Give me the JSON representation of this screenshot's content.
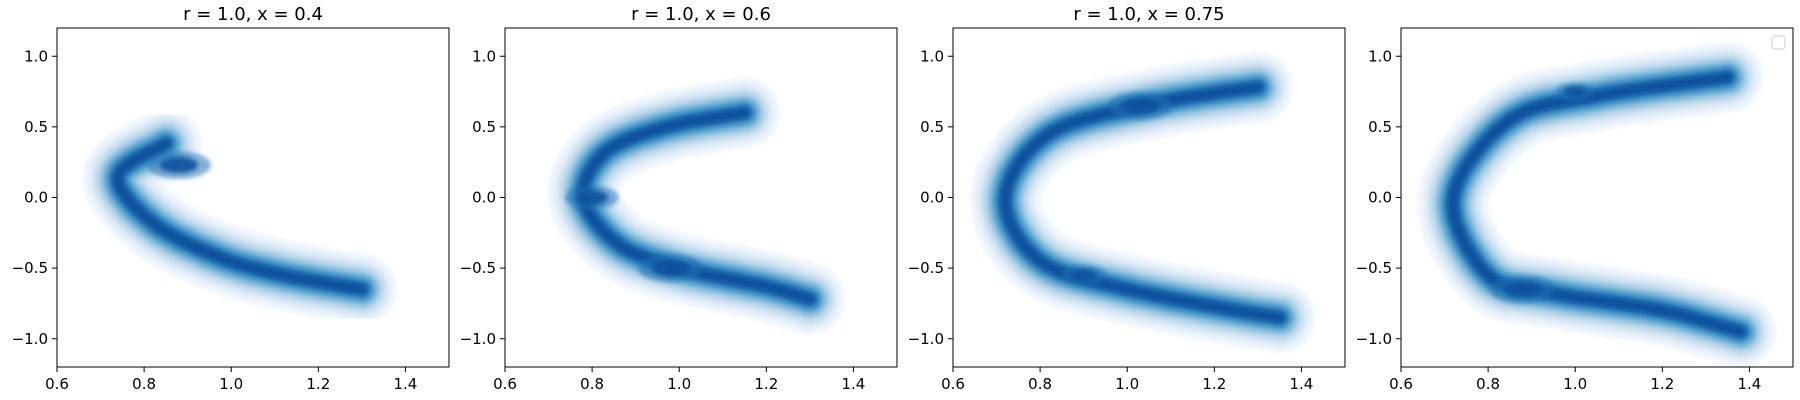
{
  "chart_data": [
    {
      "type": "contour",
      "title": "r = 1.0, x = 0.4",
      "xlabel": "",
      "ylabel": "",
      "xlim": [
        0.6,
        1.5
      ],
      "ylim": [
        -1.2,
        1.2
      ],
      "xticks": [
        {
          "value": 0.6,
          "label": "0.6"
        },
        {
          "value": 0.8,
          "label": "0.8"
        },
        {
          "value": 1.0,
          "label": "1.0"
        },
        {
          "value": 1.2,
          "label": "1.2"
        },
        {
          "value": 1.4,
          "label": "1.4"
        }
      ],
      "yticks": [
        {
          "value": -1.0,
          "label": "−1.0"
        },
        {
          "value": -0.5,
          "label": "−0.5"
        },
        {
          "value": 0.0,
          "label": "0.0"
        },
        {
          "value": 0.5,
          "label": "0.5"
        },
        {
          "value": 1.0,
          "label": "1.0"
        }
      ],
      "colormap": "Blues",
      "density_path": [
        [
          0.85,
          0.38
        ],
        [
          0.74,
          0.15
        ],
        [
          0.82,
          -0.18
        ],
        [
          0.97,
          -0.42
        ],
        [
          1.12,
          -0.55
        ],
        [
          1.3,
          -0.65
        ]
      ],
      "peaks": [
        {
          "x": 0.88,
          "y": 0.23,
          "value": 1.0
        }
      ]
    },
    {
      "type": "contour",
      "title": "r = 1.0, x = 0.6",
      "xlabel": "",
      "ylabel": "",
      "xlim": [
        0.6,
        1.5
      ],
      "ylim": [
        -1.2,
        1.2
      ],
      "xticks": [
        {
          "value": 0.6,
          "label": "0.6"
        },
        {
          "value": 0.8,
          "label": "0.8"
        },
        {
          "value": 1.0,
          "label": "1.0"
        },
        {
          "value": 1.2,
          "label": "1.2"
        },
        {
          "value": 1.4,
          "label": "1.4"
        }
      ],
      "yticks": [
        {
          "value": -1.0,
          "label": "−1.0"
        },
        {
          "value": -0.5,
          "label": "−0.5"
        },
        {
          "value": 0.0,
          "label": "0.0"
        },
        {
          "value": 0.5,
          "label": "0.5"
        },
        {
          "value": 1.0,
          "label": "1.0"
        }
      ],
      "colormap": "Blues",
      "density_path": [
        [
          1.15,
          0.6
        ],
        [
          0.97,
          0.5
        ],
        [
          0.83,
          0.32
        ],
        [
          0.78,
          0.0
        ],
        [
          0.86,
          -0.33
        ],
        [
          1.0,
          -0.5
        ],
        [
          1.2,
          -0.63
        ],
        [
          1.3,
          -0.72
        ]
      ],
      "peaks": [
        {
          "x": 0.98,
          "y": -0.5,
          "value": 1.0
        },
        {
          "x": 0.8,
          "y": 0.0,
          "value": 0.8
        }
      ]
    },
    {
      "type": "contour",
      "title": "r = 1.0, x = 0.75",
      "xlabel": "",
      "ylabel": "",
      "xlim": [
        0.6,
        1.5
      ],
      "ylim": [
        -1.2,
        1.2
      ],
      "xticks": [
        {
          "value": 0.6,
          "label": "0.6"
        },
        {
          "value": 0.8,
          "label": "0.8"
        },
        {
          "value": 1.0,
          "label": "1.0"
        },
        {
          "value": 1.2,
          "label": "1.2"
        },
        {
          "value": 1.4,
          "label": "1.4"
        }
      ],
      "yticks": [
        {
          "value": -1.0,
          "label": "−1.0"
        },
        {
          "value": -0.5,
          "label": "−0.5"
        },
        {
          "value": 0.0,
          "label": "0.0"
        },
        {
          "value": 0.5,
          "label": "0.5"
        },
        {
          "value": 1.0,
          "label": "1.0"
        }
      ],
      "colormap": "Blues",
      "density_path": [
        [
          1.3,
          0.78
        ],
        [
          1.05,
          0.66
        ],
        [
          0.82,
          0.45
        ],
        [
          0.72,
          0.0
        ],
        [
          0.8,
          -0.45
        ],
        [
          1.0,
          -0.65
        ],
        [
          1.25,
          -0.8
        ],
        [
          1.35,
          -0.85
        ]
      ],
      "peaks": [
        {
          "x": 1.03,
          "y": 0.65,
          "value": 1.0
        },
        {
          "x": 0.9,
          "y": -0.55,
          "value": 0.6
        }
      ]
    },
    {
      "type": "contour",
      "title": "",
      "xlabel": "",
      "ylabel": "",
      "xlim": [
        0.6,
        1.5
      ],
      "ylim": [
        -1.2,
        1.2
      ],
      "xticks": [
        {
          "value": 0.6,
          "label": "0.6"
        },
        {
          "value": 0.8,
          "label": "0.8"
        },
        {
          "value": 1.0,
          "label": "1.0"
        },
        {
          "value": 1.2,
          "label": "1.2"
        },
        {
          "value": 1.4,
          "label": "1.4"
        }
      ],
      "yticks": [
        {
          "value": -1.0,
          "label": "−1.0"
        },
        {
          "value": -0.5,
          "label": "−0.5"
        },
        {
          "value": 0.0,
          "label": "0.0"
        },
        {
          "value": 0.5,
          "label": "0.5"
        },
        {
          "value": 1.0,
          "label": "1.0"
        }
      ],
      "colormap": "Blues",
      "legend": "top-right",
      "density_path": [
        [
          1.35,
          0.85
        ],
        [
          1.05,
          0.72
        ],
        [
          0.85,
          0.55
        ],
        [
          0.72,
          0.0
        ],
        [
          0.8,
          -0.55
        ],
        [
          0.95,
          -0.68
        ],
        [
          1.2,
          -0.8
        ],
        [
          1.38,
          -0.95
        ]
      ],
      "peaks": [
        {
          "x": 0.88,
          "y": -0.65,
          "value": 1.0
        },
        {
          "x": 1.0,
          "y": 0.75,
          "value": 0.5
        }
      ]
    }
  ]
}
